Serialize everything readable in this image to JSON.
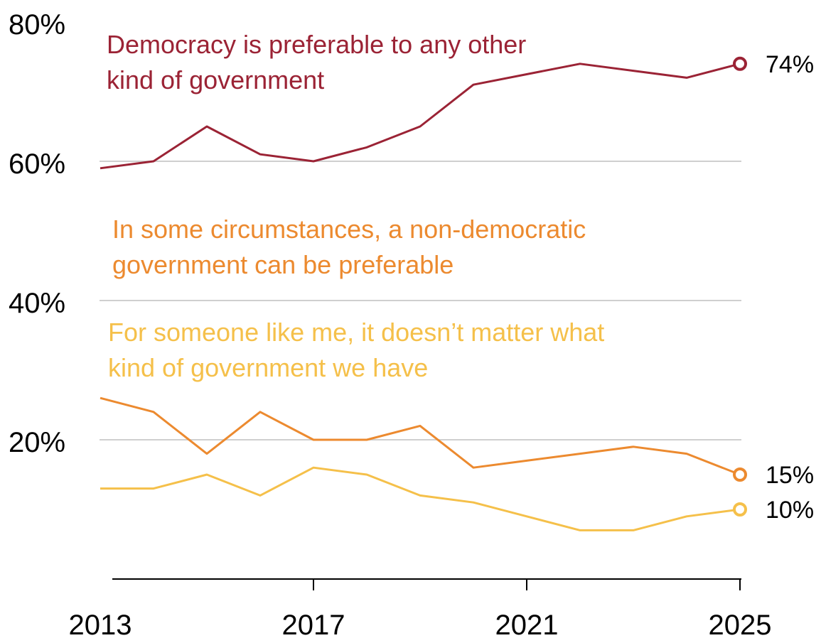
{
  "chart_data": {
    "type": "line",
    "x": [
      2013,
      2014,
      2015,
      2016,
      2017,
      2018,
      2019,
      2020,
      2021,
      2022,
      2023,
      2024,
      2025
    ],
    "series": [
      {
        "name": "Democracy is preferable to any other kind of government",
        "label_lines": [
          "Democracy is preferable to any other",
          "kind of government"
        ],
        "color": "#9b2335",
        "values": [
          59,
          60,
          65,
          61,
          60,
          62,
          65,
          71,
          72.5,
          74,
          73,
          72,
          74
        ],
        "end_label": "74%"
      },
      {
        "name": "In some circumstances, a non-democratic government can be preferable",
        "label_lines": [
          "In some circumstances, a non-democratic",
          "government can be preferable"
        ],
        "color": "#ec8a2f",
        "values": [
          26,
          24,
          18,
          24,
          20,
          20,
          22,
          16,
          17,
          18,
          19,
          18,
          15
        ],
        "end_label": "15%"
      },
      {
        "name": "For someone like me, it doesn’t matter what kind of government we have",
        "label_lines": [
          "For someone like me, it doesn’t matter what",
          "kind of government we have"
        ],
        "color": "#f5c04a",
        "values": [
          13,
          13,
          15,
          12,
          16,
          15,
          12,
          11,
          9,
          7,
          7,
          9,
          10
        ],
        "end_label": "10%"
      }
    ],
    "y_ticks": [
      "80%",
      "60%",
      "40%",
      "20%"
    ],
    "x_ticks": [
      "2013",
      "2017",
      "2021",
      "2025"
    ],
    "ylim": [
      0,
      80
    ],
    "xlim": [
      2013,
      2025
    ],
    "grid": true
  }
}
